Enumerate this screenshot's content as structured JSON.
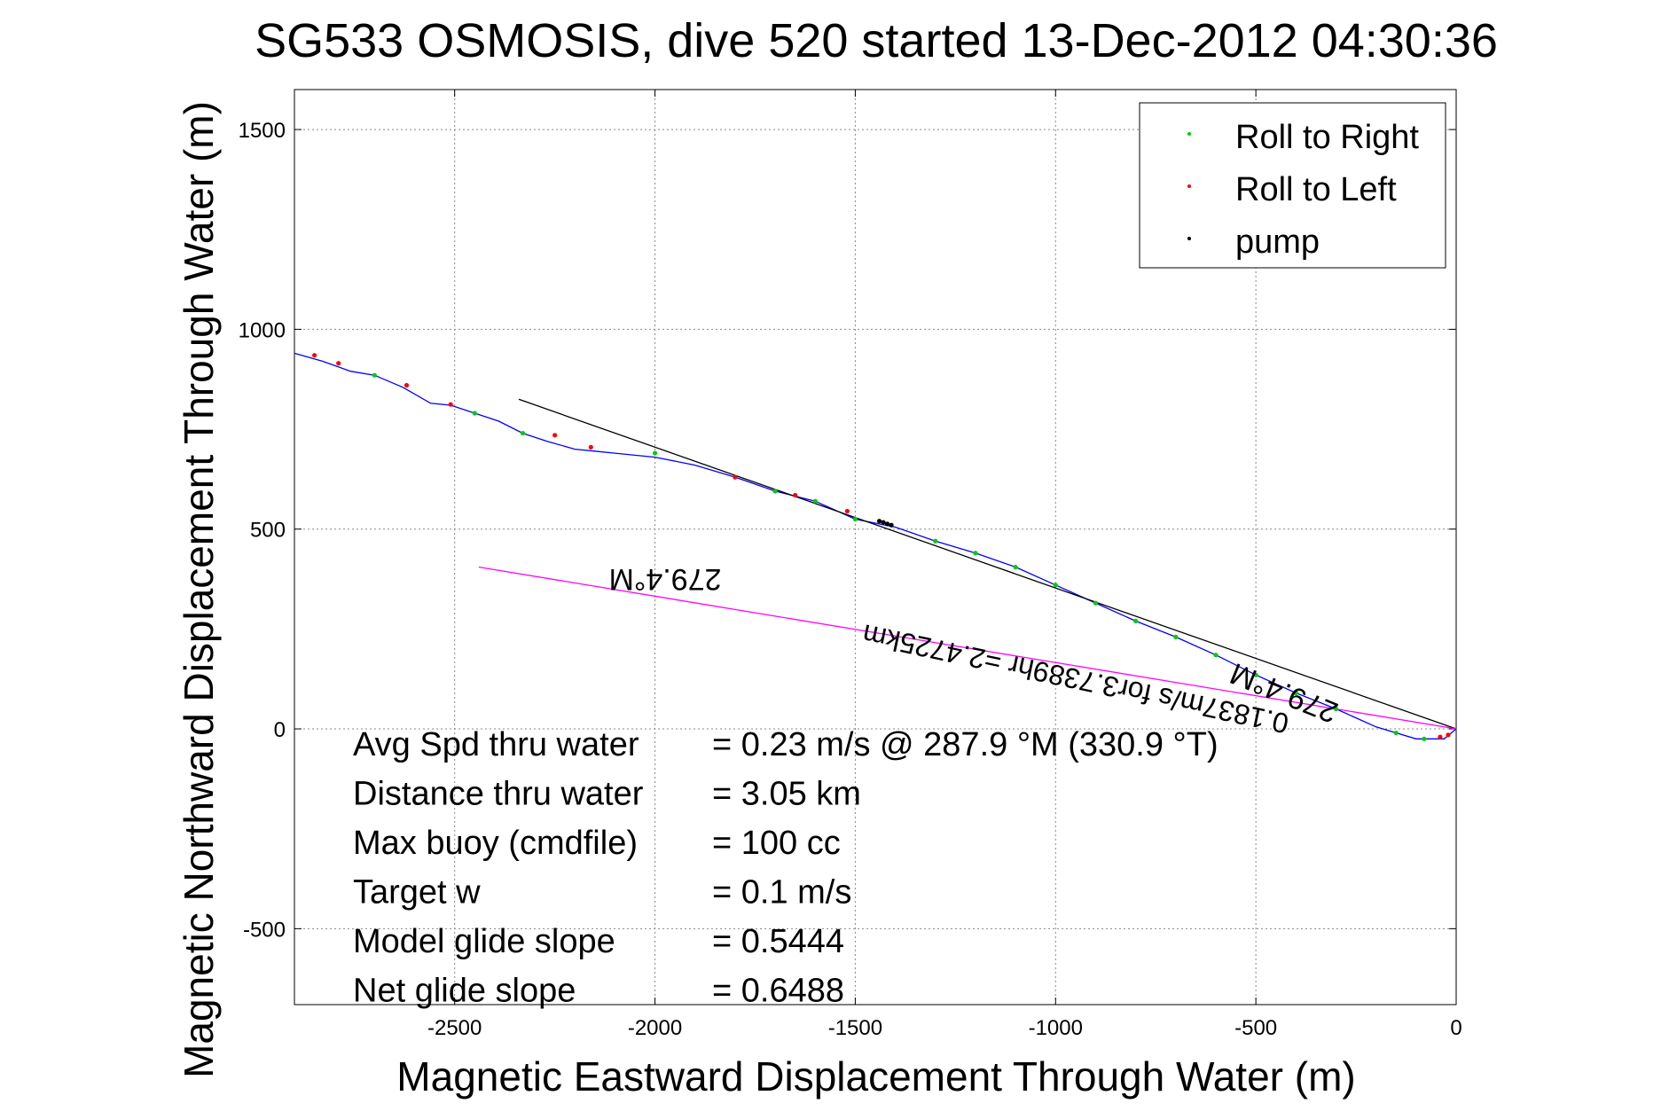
{
  "chart_data": {
    "type": "line",
    "title": "SG533 OSMOSIS, dive 520 started 13-Dec-2012 04:30:36",
    "xlabel": "Magnetic Eastward Displacement Through Water (m)",
    "ylabel": "Magnetic Northward Displacement Through Water (m)",
    "xlim": [
      -2900,
      0
    ],
    "ylim": [
      -690,
      1600
    ],
    "xticks": [
      -2500,
      -2000,
      -1500,
      -1000,
      -500,
      0
    ],
    "yticks": [
      -500,
      0,
      500,
      1000,
      1500
    ],
    "xtick_labels": [
      "-2500",
      "-2000",
      "-1500",
      "-1000",
      "-500",
      "0"
    ],
    "ytick_labels": [
      "-500",
      "0",
      "500",
      "1000",
      "1500"
    ],
    "grid": true,
    "legend": {
      "position": "top-right",
      "entries": [
        {
          "label": "Roll to Right",
          "color": "#00cc00"
        },
        {
          "label": "Roll to Left",
          "color": "#ff0000"
        },
        {
          "label": "pump",
          "color": "#000000"
        }
      ]
    },
    "series": [
      {
        "color": "#0000ff",
        "x": [
          -2900,
          -2830,
          -2760,
          -2700,
          -2630,
          -2560,
          -2510,
          -2450,
          -2390,
          -2330,
          -2270,
          -2200,
          -2150,
          -2100,
          -2000,
          -1900,
          -1800,
          -1700,
          -1600,
          -1500,
          -1400,
          -1300,
          -1200,
          -1100,
          -1000,
          -900,
          -800,
          -700,
          -600,
          -500,
          -400,
          -300,
          -200,
          -100,
          -30,
          0
        ],
        "y": [
          940,
          920,
          895,
          885,
          855,
          815,
          810,
          790,
          770,
          740,
          720,
          700,
          695,
          690,
          680,
          660,
          630,
          595,
          570,
          525,
          505,
          470,
          440,
          405,
          360,
          315,
          270,
          230,
          185,
          135,
          90,
          50,
          5,
          -25,
          -25,
          0
        ]
      },
      {
        "color": "#000000",
        "x": [
          -2340,
          0
        ],
        "y": [
          825,
          0
        ]
      },
      {
        "color": "#ff00ff",
        "x": [
          -2440,
          0
        ],
        "y": [
          405,
          0
        ]
      }
    ],
    "roll_right_x": [
      -2700,
      -2450,
      -2330,
      -2000,
      -1700,
      -1600,
      -1500,
      -1300,
      -1200,
      -1100,
      -1000,
      -900,
      -800,
      -700,
      -600,
      -500,
      -400,
      -300,
      -150,
      -80
    ],
    "roll_right_y": [
      885,
      790,
      740,
      690,
      595,
      570,
      525,
      470,
      440,
      405,
      360,
      315,
      270,
      230,
      185,
      135,
      90,
      50,
      -10,
      -25
    ],
    "roll_left_x": [
      -2850,
      -2790,
      -2620,
      -2510,
      -2250,
      -2160,
      -1800,
      -1650,
      -1520,
      -40,
      -20
    ],
    "roll_left_y": [
      935,
      915,
      860,
      812,
      735,
      705,
      630,
      585,
      545,
      -20,
      -15
    ],
    "pump_x": [
      -1440,
      -1430,
      -1420,
      -1410
    ],
    "pump_y": [
      520,
      517,
      513,
      510
    ],
    "annotations": {
      "heading_upper": "279.4°M",
      "heading_lower": "279.4°M",
      "speed_line": "0.1837m/s for3.7389hr =2.4725km"
    },
    "stats": [
      {
        "label": "Avg Spd thru water",
        "value": "=  0.23 m/s @ 287.9 °M (330.9 °T)"
      },
      {
        "label": "Distance thru water",
        "value": "=  3.05 km"
      },
      {
        "label": "Max buoy (cmdfile)",
        "value": "= 100 cc"
      },
      {
        "label": "Target w",
        "value": "= 0.1 m/s"
      },
      {
        "label": "Model glide slope",
        "value": "= 0.5444"
      },
      {
        "label": "Net glide slope",
        "value": "= 0.6488"
      }
    ]
  }
}
